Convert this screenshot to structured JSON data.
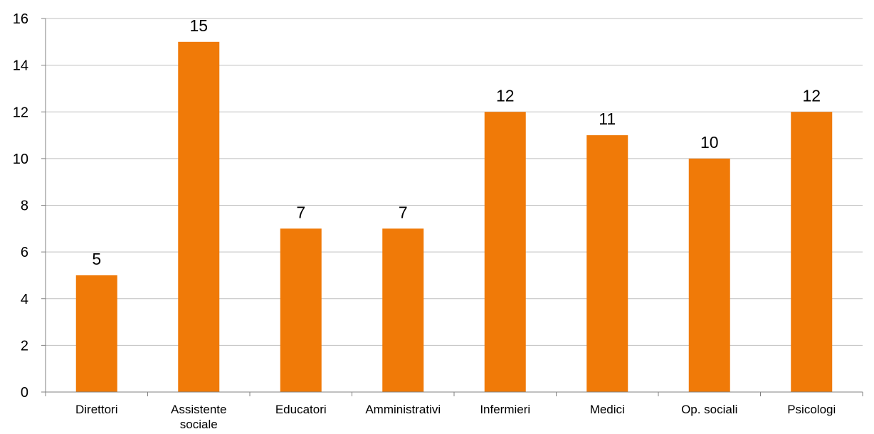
{
  "chart_data": {
    "type": "bar",
    "categories": [
      [
        "Direttori"
      ],
      [
        "Assistente",
        "sociale"
      ],
      [
        "Educatori"
      ],
      [
        "Amministrativi"
      ],
      [
        "Infermieri"
      ],
      [
        "Medici"
      ],
      [
        "Op. sociali"
      ],
      [
        "Psicologi"
      ]
    ],
    "values": [
      5,
      15,
      7,
      7,
      12,
      11,
      10,
      12
    ],
    "ylim": [
      0,
      16
    ],
    "yticks": [
      0,
      2,
      4,
      6,
      8,
      10,
      12,
      14,
      16
    ],
    "grid": true,
    "legend": "none",
    "bar_color": "#F07A08",
    "grid_color": "#BFBFBF",
    "axis_color": "#808080"
  }
}
